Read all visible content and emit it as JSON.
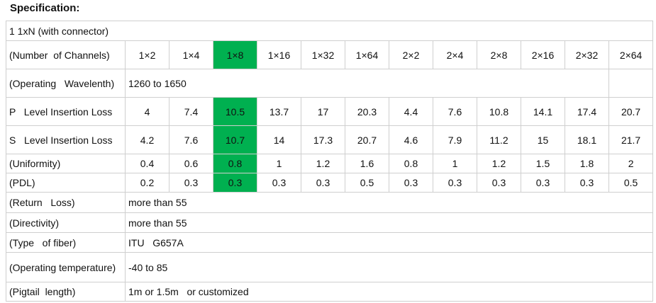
{
  "title": "Specification:",
  "table": {
    "rows": [
      {
        "label": "1 1xN (with connector)"
      },
      {
        "label": "(Number  of Channels)",
        "cells": [
          "1×2",
          "1×4",
          "1×8",
          "1×16",
          "1×32",
          "1×64",
          "2×2",
          "2×4",
          "2×8",
          "2×16",
          "2×32",
          "2×64"
        ]
      },
      {
        "label": "(Operating   Wavelenth)",
        "cells": [
          "1260 to 1650"
        ]
      },
      {
        "label": "P   Level Insertion Loss",
        "cells": [
          4,
          7.4,
          10.5,
          13.7,
          17,
          20.3,
          4.4,
          7.6,
          10.8,
          14.1,
          17.4,
          20.7
        ]
      },
      {
        "label": "S   Level Insertion Loss",
        "cells": [
          4.2,
          7.6,
          10.7,
          14,
          17.3,
          20.7,
          4.6,
          7.9,
          11.2,
          15,
          18.1,
          21.7
        ]
      },
      {
        "label": "(Uniformity)",
        "cells": [
          0.4,
          0.6,
          0.8,
          1,
          1.2,
          1.6,
          0.8,
          1,
          1.2,
          1.5,
          1.8,
          2
        ]
      },
      {
        "label": "(PDL)",
        "cells": [
          0.2,
          0.3,
          0.3,
          0.3,
          0.3,
          0.5,
          0.3,
          0.3,
          0.3,
          0.3,
          0.3,
          0.5
        ]
      },
      {
        "label": "(Return   Loss)",
        "cells": [
          "more than 55"
        ]
      },
      {
        "label": "(Directivity)",
        "cells": [
          "more than 55"
        ]
      },
      {
        "label": "(Type   of fiber)",
        "cells": [
          "ITU   G657A"
        ]
      },
      {
        "label": "(Operating temperature)",
        "cells": [
          "-40 to 85"
        ]
      },
      {
        "label": "(Pigtail  length)",
        "cells": [
          "1m or 1.5m   or customized"
        ]
      }
    ]
  }
}
